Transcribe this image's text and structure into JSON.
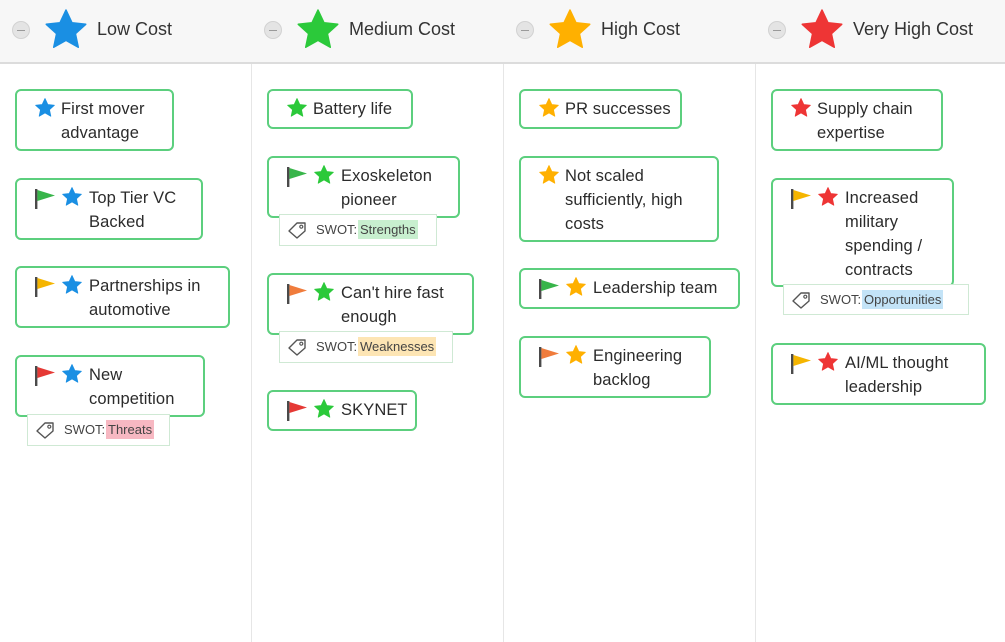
{
  "colors": {
    "blue": "#1a8fe3",
    "green": "#2bc93a",
    "orange": "#ffb000",
    "red": "#ee3535",
    "card_border": "#5ccf7e",
    "flag_green": "#38b54a",
    "flag_yellow": "#f5b500",
    "flag_orange": "#f07c3c",
    "flag_red": "#e53935",
    "tag_strengths": "#c8efcf",
    "tag_weaknesses": "#fde5b4",
    "tag_opportunities": "#c3e3f7",
    "tag_threats": "#f7b8c2"
  },
  "swot_prefix": "SWOT:",
  "columns": [
    {
      "title": "Low Cost",
      "star_color": "blue"
    },
    {
      "title": "Medium Cost",
      "star_color": "green"
    },
    {
      "title": "High Cost",
      "star_color": "orange"
    },
    {
      "title": "Very High Cost",
      "star_color": "red"
    }
  ],
  "cards": [
    {
      "col": 0,
      "flag": "",
      "star": "blue",
      "lines": [
        "First mover",
        "advantage"
      ]
    },
    {
      "col": 0,
      "flag": "green",
      "star": "blue",
      "lines": [
        "Top Tier VC",
        "Backed"
      ]
    },
    {
      "col": 0,
      "flag": "yellow",
      "star": "blue",
      "lines": [
        "Partnerships in",
        "automotive"
      ]
    },
    {
      "col": 0,
      "flag": "red",
      "star": "blue",
      "lines": [
        "New",
        "competition"
      ],
      "tag": {
        "label": "Threats",
        "color": "tag_threats"
      }
    },
    {
      "col": 1,
      "flag": "",
      "star": "green",
      "lines": [
        "Battery life"
      ]
    },
    {
      "col": 1,
      "flag": "green",
      "star": "green",
      "lines": [
        "Exoskeleton",
        "pioneer"
      ],
      "tag": {
        "label": "Strengths",
        "color": "tag_strengths"
      }
    },
    {
      "col": 1,
      "flag": "orange",
      "star": "green",
      "lines": [
        "Can't hire fast",
        "enough"
      ],
      "tag": {
        "label": "Weaknesses",
        "color": "tag_weaknesses"
      }
    },
    {
      "col": 1,
      "flag": "red",
      "star": "green",
      "lines": [
        "SKYNET"
      ]
    },
    {
      "col": 2,
      "flag": "",
      "star": "orange",
      "lines": [
        "PR successes"
      ]
    },
    {
      "col": 2,
      "flag": "",
      "star": "orange",
      "lines": [
        "Not scaled",
        "sufficiently, high",
        "costs"
      ]
    },
    {
      "col": 2,
      "flag": "green",
      "star": "orange",
      "lines": [
        "Leadership team"
      ]
    },
    {
      "col": 2,
      "flag": "orange",
      "star": "orange",
      "lines": [
        "Engineering",
        "backlog"
      ]
    },
    {
      "col": 3,
      "flag": "",
      "star": "red",
      "lines": [
        "Supply chain",
        "expertise"
      ]
    },
    {
      "col": 3,
      "flag": "yellow",
      "star": "red",
      "lines": [
        "Increased",
        "military",
        "spending /",
        "contracts"
      ],
      "tag": {
        "label": "Opportunities",
        "color": "tag_opportunities"
      }
    },
    {
      "col": 3,
      "flag": "yellow",
      "star": "red",
      "lines": [
        "AI/ML thought",
        "leadership"
      ]
    }
  ]
}
